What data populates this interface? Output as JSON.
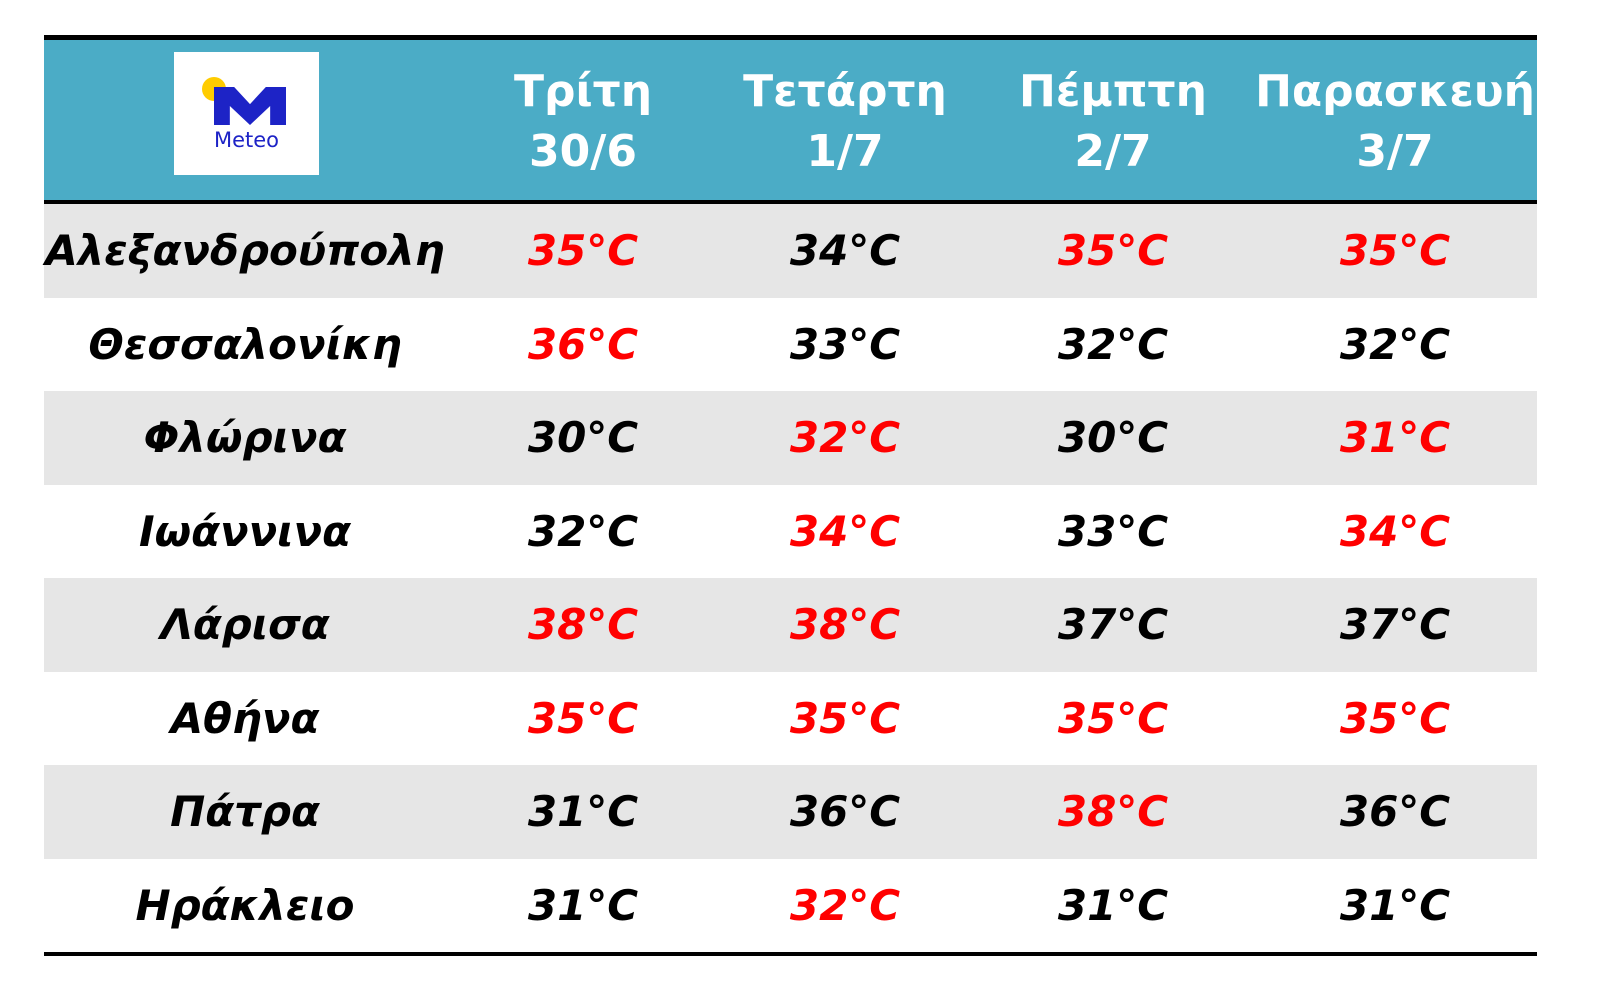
{
  "logo": {
    "text": "Meteo",
    "colors": {
      "sun": "#FFCC00",
      "mark": "#1D23C6"
    }
  },
  "header": {
    "days": [
      {
        "day": "Τρίτη",
        "date": "30/6"
      },
      {
        "day": "Τετάρτη",
        "date": "1/7"
      },
      {
        "day": "Πέμπτη",
        "date": "2/7"
      },
      {
        "day": "Παρασκευή",
        "date": "3/7"
      }
    ]
  },
  "colors": {
    "header": "#4BACC6",
    "stripe": "#E6E6E6",
    "hot": "#FF0000",
    "normal": "#000000"
  },
  "rows": [
    {
      "city": "Αλεξανδρούπολη",
      "temps": [
        "35°C",
        "34°C",
        "35°C",
        "35°C"
      ],
      "hot": [
        true,
        false,
        true,
        true
      ]
    },
    {
      "city": "Θεσσαλονίκη",
      "temps": [
        "36°C",
        "33°C",
        "32°C",
        "32°C"
      ],
      "hot": [
        true,
        false,
        false,
        false
      ]
    },
    {
      "city": "Φλώρινα",
      "temps": [
        "30°C",
        "32°C",
        "30°C",
        "31°C"
      ],
      "hot": [
        false,
        true,
        false,
        true
      ]
    },
    {
      "city": "Ιωάννινα",
      "temps": [
        "32°C",
        "34°C",
        "33°C",
        "34°C"
      ],
      "hot": [
        false,
        true,
        false,
        true
      ]
    },
    {
      "city": "Λάρισα",
      "temps": [
        "38°C",
        "38°C",
        "37°C",
        "37°C"
      ],
      "hot": [
        true,
        true,
        false,
        false
      ]
    },
    {
      "city": "Αθήνα",
      "temps": [
        "35°C",
        "35°C",
        "35°C",
        "35°C"
      ],
      "hot": [
        true,
        true,
        true,
        true
      ]
    },
    {
      "city": "Πάτρα",
      "temps": [
        "31°C",
        "36°C",
        "38°C",
        "36°C"
      ],
      "hot": [
        false,
        false,
        true,
        false
      ]
    },
    {
      "city": "Ηράκλειο",
      "temps": [
        "31°C",
        "32°C",
        "31°C",
        "31°C"
      ],
      "hot": [
        false,
        true,
        false,
        false
      ]
    }
  ]
}
